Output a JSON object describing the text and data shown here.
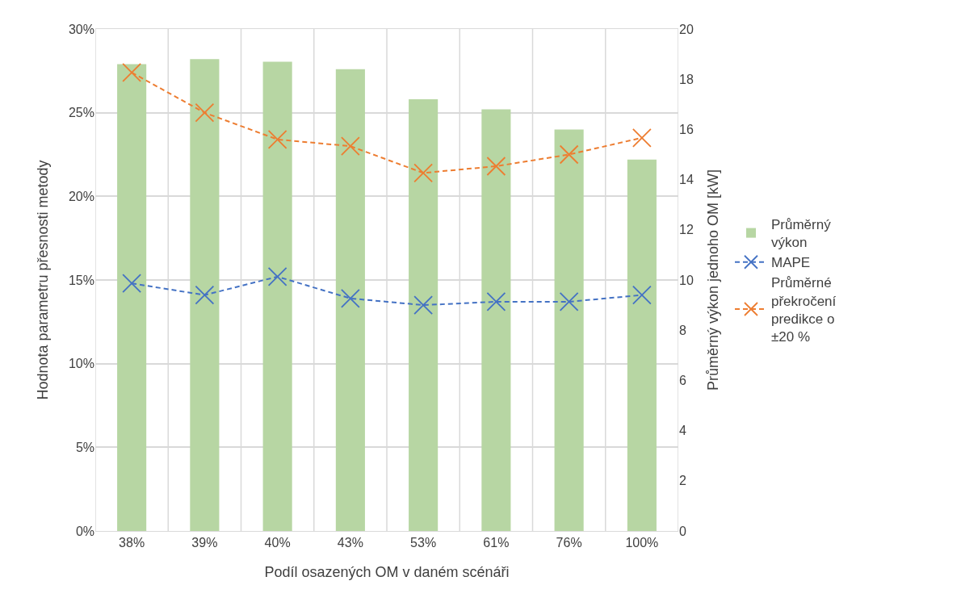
{
  "chart_data": {
    "type": "bar",
    "xlabel": "Podíl osazených OM v daném scénáři",
    "ylabel": "Hodnota parametru přesnosti metody",
    "y2label": "Průměrný výkon jednoho OM [kW]",
    "categories": [
      "38%",
      "39%",
      "40%",
      "43%",
      "53%",
      "61%",
      "76%",
      "100%"
    ],
    "series": [
      {
        "name": "Průměrný výkon",
        "axis": "y2",
        "color": "#b7d6a3",
        "values": [
          18.6,
          18.8,
          18.7,
          18.4,
          17.2,
          16.8,
          16.0,
          14.8
        ]
      },
      {
        "name": "MAPE",
        "type": "line",
        "color": "#4472c4",
        "marker": "cross",
        "line_style": "dashed",
        "values": [
          14.8,
          14.1,
          15.2,
          13.9,
          13.5,
          13.7,
          13.7,
          14.1
        ]
      },
      {
        "name": "Průměrné překročení predikce o ±20 %",
        "type": "line",
        "color": "#ed7d31",
        "marker": "cross",
        "line_style": "dashed",
        "values": [
          27.4,
          25.0,
          23.4,
          23.0,
          21.4,
          21.8,
          22.5,
          23.5
        ]
      }
    ],
    "ylim": [
      0,
      30
    ],
    "yticks": [
      {
        "value": 0,
        "label": "0%"
      },
      {
        "value": 5,
        "label": "5%"
      },
      {
        "value": 10,
        "label": "10%"
      },
      {
        "value": 15,
        "label": "15%"
      },
      {
        "value": 20,
        "label": "20%"
      },
      {
        "value": 25,
        "label": "25%"
      },
      {
        "value": 30,
        "label": "30%"
      }
    ],
    "y2lim": [
      0,
      20
    ],
    "y2ticks": [
      0,
      2,
      4,
      6,
      8,
      10,
      12,
      14,
      16,
      18,
      20
    ],
    "grid": true,
    "legend": "right"
  }
}
